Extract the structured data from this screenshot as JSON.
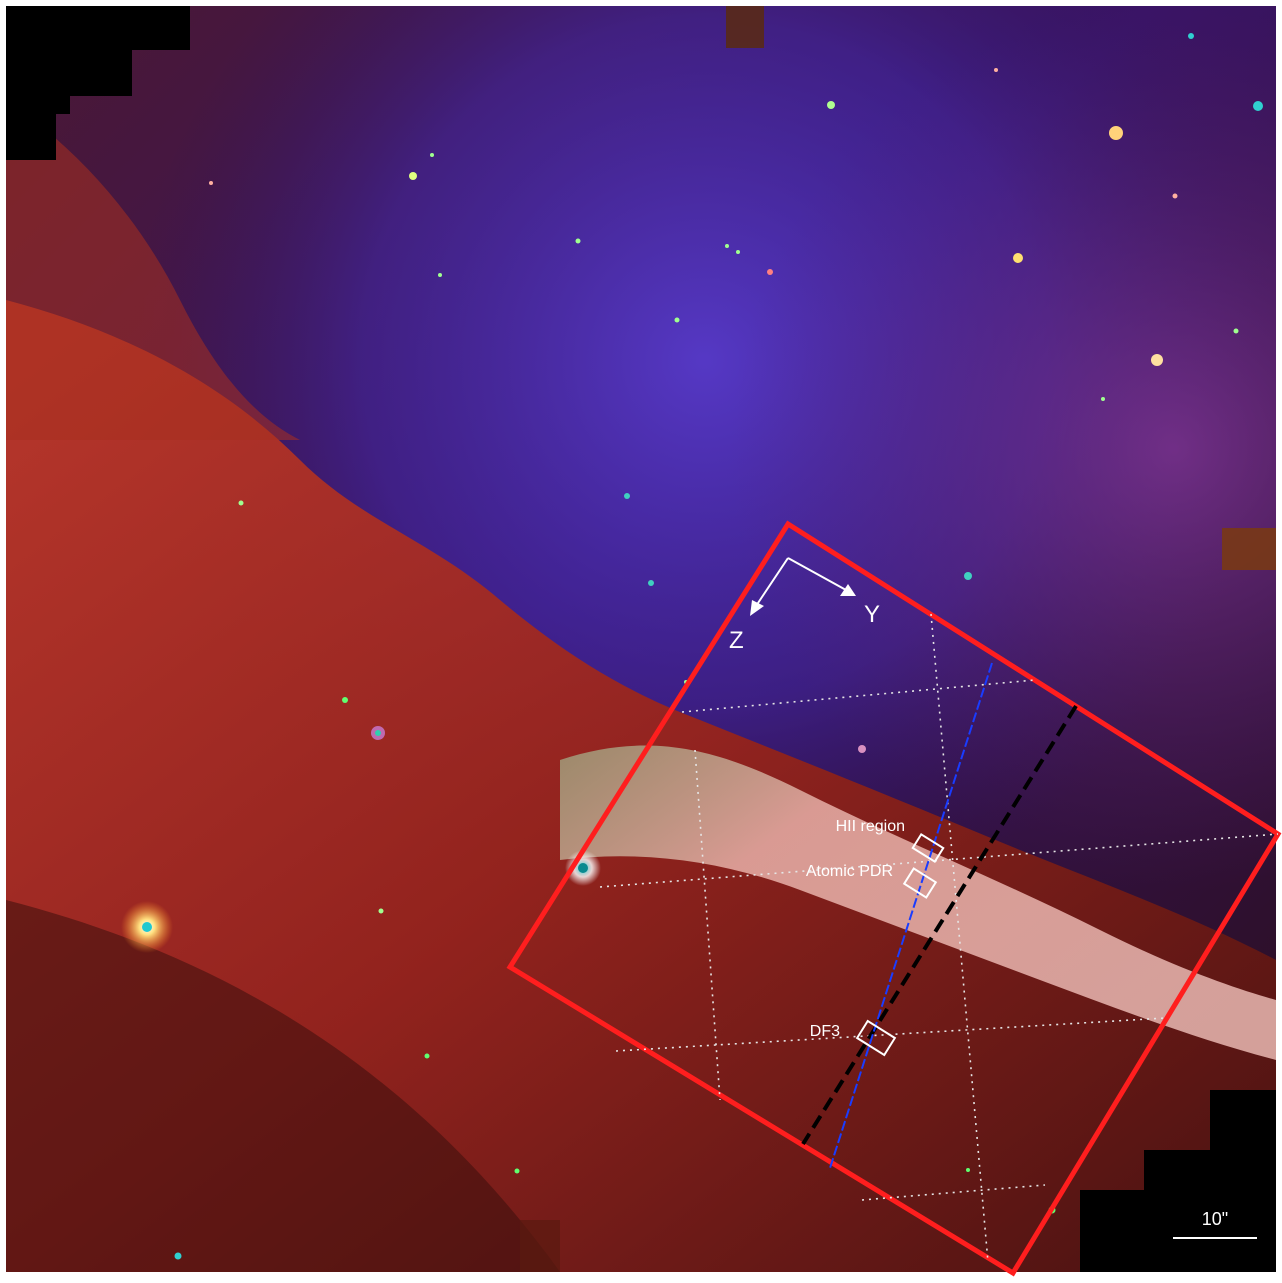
{
  "figure": {
    "axis_labels": {
      "z": "Z",
      "y": "Y"
    },
    "regions": [
      {
        "label": "HII region"
      },
      {
        "label": "Atomic PDR"
      },
      {
        "label": "DF3"
      }
    ],
    "scale_bar": {
      "label": "10\""
    },
    "colors": {
      "field_outline": "#ff1e1e",
      "markers": "#ffffff",
      "cut_black": "#000000",
      "cut_blue": "#1a3cff",
      "grid": "#e6e6e6"
    }
  }
}
